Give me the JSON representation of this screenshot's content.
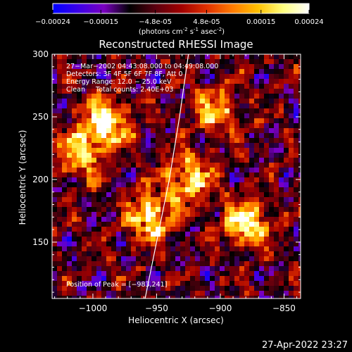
{
  "colorbar": {
    "ticks": [
      "-0.00024",
      "-0.00015",
      "-4.8e-05",
      "4.8e-05",
      "0.00015",
      "0.00024"
    ],
    "tick_values": [
      -0.00024,
      -0.00015,
      -4.8e-05,
      4.8e-05,
      0.00015,
      0.00024
    ],
    "range": [
      -0.00024,
      0.00024
    ],
    "unit_label_prefix": "(photons cm",
    "unit_sup1": "-2",
    "unit_mid": " s",
    "unit_sup2": "-1",
    "unit_mid2": " asec",
    "unit_sup3": "-2",
    "unit_suffix": ")",
    "colormap": [
      "#0000ff",
      "#3c00e6",
      "#7a00c0",
      "#000000",
      "#5a0010",
      "#a00000",
      "#e03000",
      "#ff7a00",
      "#ffc000",
      "#ffff80",
      "#ffffff"
    ]
  },
  "chart_data": {
    "type": "heatmap",
    "title": "Reconstructed RHESSI Image",
    "xlabel": "Heliocentric X (arcsec)",
    "ylabel": "Heliocentric Y (arcsec)",
    "xlim": [
      -1032,
      -837
    ],
    "ylim": [
      105,
      300
    ],
    "x_ticks": [
      -1000,
      -950,
      -900,
      -850
    ],
    "x_tick_labels": [
      "−1000",
      "−950",
      "−900",
      "−850"
    ],
    "y_ticks": [
      150,
      200,
      250,
      300
    ],
    "y_tick_labels": [
      "150",
      "200",
      "250",
      "300"
    ],
    "info_lines": [
      "27−Mar−2002 04:43:08.000 to 04:49:08.000",
      "Detectors: 3F 4F 5F 6F 7F 8F, Att 0",
      "Energy Range: 12.0 − 25.0 keV",
      "Clean     Total counts: 2.40E+03"
    ],
    "peak_label": "Position of Peak = [−983,241]",
    "peak_position": [
      -983,
      241
    ],
    "limb_curve": [
      [
        -959,
        105
      ],
      [
        -950,
        150
      ],
      [
        -940,
        200
      ],
      [
        -932,
        250
      ],
      [
        -925,
        300
      ]
    ],
    "bright_regions": [
      {
        "x": -990,
        "y": 245,
        "level": 0.95
      },
      {
        "x": -955,
        "y": 170,
        "level": 0.85
      },
      {
        "x": -925,
        "y": 200,
        "level": 0.8
      },
      {
        "x": -880,
        "y": 165,
        "level": 0.9
      },
      {
        "x": -905,
        "y": 255,
        "level": 0.6
      },
      {
        "x": -1010,
        "y": 220,
        "level": 0.7
      }
    ]
  },
  "footer": {
    "timestamp": "27-Apr-2022 23:27"
  }
}
